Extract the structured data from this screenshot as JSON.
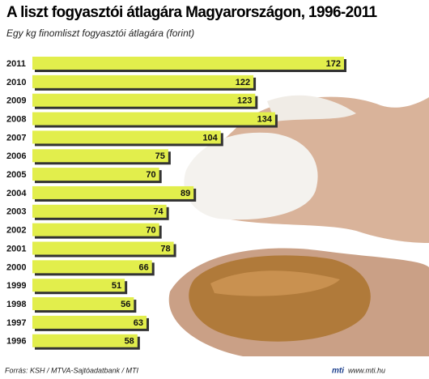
{
  "chart_data": {
    "type": "bar",
    "orientation": "horizontal",
    "title": "A liszt fogyasztói átlagára Magyarországon, 1996-2011",
    "subtitle": "Egy kg finomliszt fogyasztói átlagára (forint)",
    "categories": [
      "2011",
      "2010",
      "2009",
      "2008",
      "2007",
      "2006",
      "2005",
      "2004",
      "2003",
      "2002",
      "2001",
      "2000",
      "1999",
      "1998",
      "1997",
      "1996"
    ],
    "values": [
      172,
      122,
      123,
      134,
      104,
      75,
      70,
      89,
      74,
      70,
      78,
      66,
      51,
      56,
      63,
      58
    ],
    "color": "#e2ee4c",
    "source": "Forrás: KSH / MTVA-Sajtóadatbank / MTI",
    "logo": "mti",
    "url": "www.mti.hu"
  }
}
